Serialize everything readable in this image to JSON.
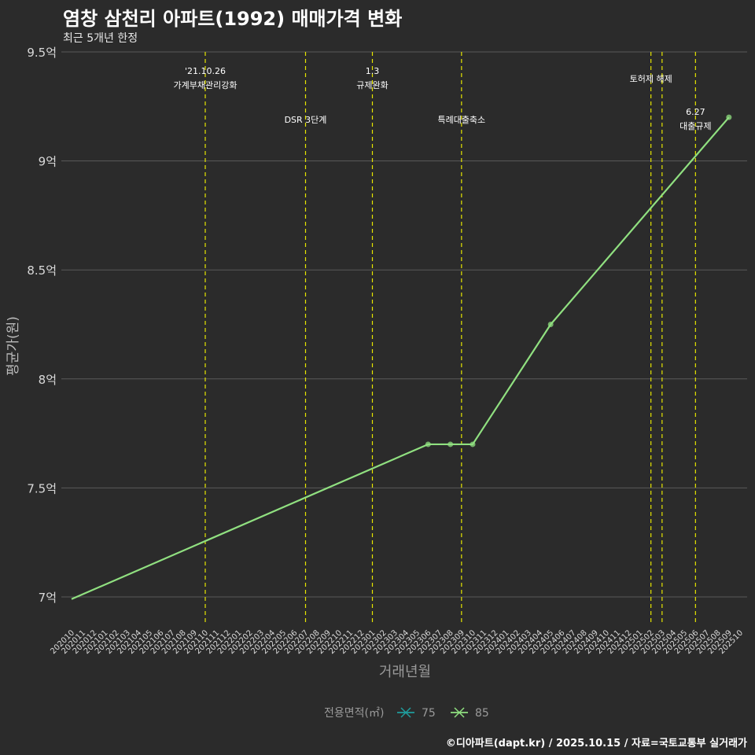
{
  "chart_data": {
    "type": "line",
    "title": "염창 삼천리 아파트(1992) 매매가격 변화",
    "subtitle": "최근 5개년 한정",
    "xlabel": "거래년월",
    "ylabel": "평균가(원)",
    "caption": "©디아파트(dapt.kr) / 2025.10.15 / 자료=국토교통부 실거래가",
    "ylim": [
      6.9,
      9.5
    ],
    "y_ticks": [
      {
        "value": 7,
        "label": "7억"
      },
      {
        "value": 7.5,
        "label": "7.5억"
      },
      {
        "value": 8,
        "label": "8억"
      },
      {
        "value": 8.5,
        "label": "8.5억"
      },
      {
        "value": 9,
        "label": "9억"
      },
      {
        "value": 9.5,
        "label": "9.5억"
      }
    ],
    "categories": [
      "202010",
      "202011",
      "202012",
      "202101",
      "202102",
      "202103",
      "202104",
      "202105",
      "202106",
      "202107",
      "202108",
      "202109",
      "202110",
      "202111",
      "202112",
      "202201",
      "202202",
      "202203",
      "202204",
      "202205",
      "202206",
      "202207",
      "202208",
      "202209",
      "202210",
      "202211",
      "202212",
      "202301",
      "202302",
      "202303",
      "202304",
      "202305",
      "202306",
      "202307",
      "202308",
      "202309",
      "202310",
      "202311",
      "202312",
      "202401",
      "202402",
      "202403",
      "202404",
      "202405",
      "202406",
      "202407",
      "202408",
      "202409",
      "202410",
      "202411",
      "202412",
      "202501",
      "202502",
      "202503",
      "202504",
      "202505",
      "202506",
      "202507",
      "202508",
      "202509",
      "202510"
    ],
    "series": [
      {
        "name": "85",
        "color": "#90e080",
        "line_points": [
          {
            "x": "202010",
            "y": 6.99
          },
          {
            "x": "202306",
            "y": 7.7
          },
          {
            "x": "202308",
            "y": 7.7
          },
          {
            "x": "202310",
            "y": 7.7
          },
          {
            "x": "202405",
            "y": 8.25
          },
          {
            "x": "202509",
            "y": 9.2
          }
        ],
        "markers": [
          {
            "x": "202306",
            "y": 7.7
          },
          {
            "x": "202308",
            "y": 7.7
          },
          {
            "x": "202310",
            "y": 7.7
          },
          {
            "x": "202405",
            "y": 8.25
          },
          {
            "x": "202509",
            "y": 9.2
          }
        ]
      }
    ],
    "annotations": [
      {
        "x": "202110",
        "line1": "'21.10.26",
        "line2": "가계부채관리강화",
        "level": "top"
      },
      {
        "x": "202207",
        "line1": "DSR 3단계",
        "line2": "",
        "level": "mid"
      },
      {
        "x": "202301",
        "line1": "1.3",
        "line2": "규제완화",
        "level": "top"
      },
      {
        "x": "202309",
        "line1": "특례대출축소",
        "line2": "",
        "level": "mid"
      },
      {
        "x": "202502",
        "line1": "토허제 해제",
        "line2": "",
        "level": "top2"
      },
      {
        "x": "202503",
        "line1": "",
        "line2": "",
        "level": "none"
      },
      {
        "x": "202506",
        "line1": "6.27",
        "line2": "대출규제",
        "level": "mid2"
      }
    ],
    "legend": {
      "title": "전용면적(㎡)",
      "items": [
        {
          "label": "75",
          "color": "#1f9e9e"
        },
        {
          "label": "85",
          "color": "#90e080"
        }
      ]
    },
    "grid": true,
    "vline_color": "#e6e600"
  }
}
